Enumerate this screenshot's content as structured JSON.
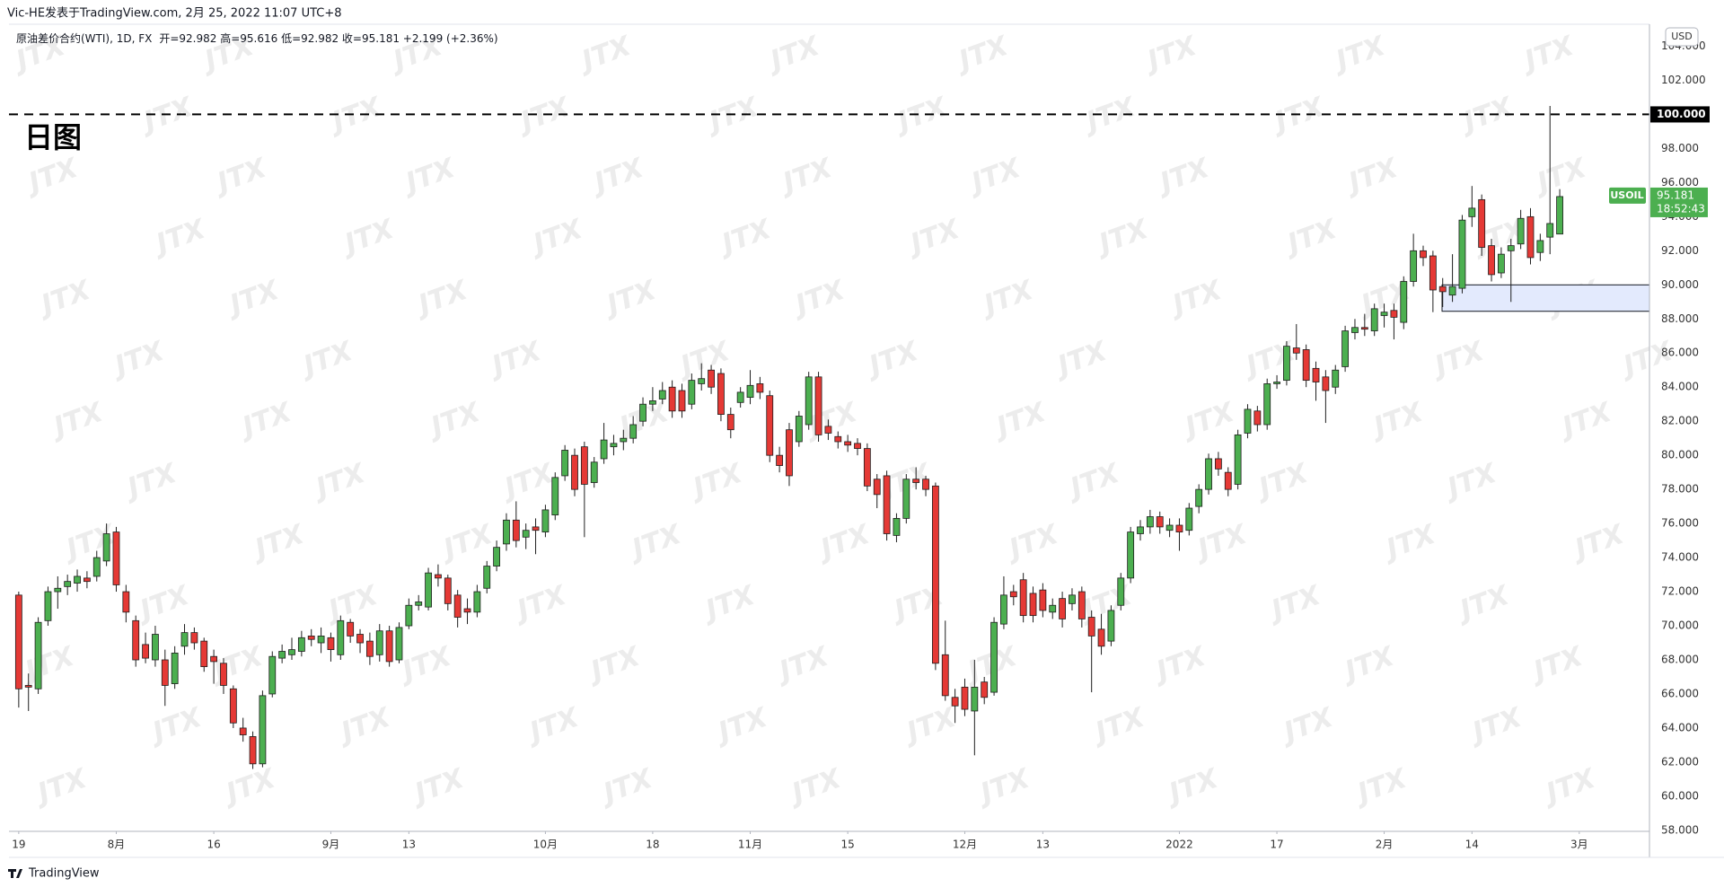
{
  "header": "Vic-HE发表于TradingView.com, 2月 25, 2022 11:07 UTC+8",
  "footer": "TradingView",
  "watermark": "JTX",
  "chart_data": {
    "type": "candlestick",
    "annotation": "日图",
    "currency": "USD",
    "ohlc_text": "开=92.982 高=95.616 低=92.982 收=95.181 +2.199 (+2.36%)",
    "up_color": "#4caf50",
    "down_color": "#e53935",
    "border_color": "#1e1e1e",
    "grid": false,
    "series": [
      {
        "name": "原油差价合约(WTI), 1D, FX",
        "open": [
          71.8,
          66.5,
          66.3,
          70.3,
          72.0,
          72.3,
          72.5,
          72.8,
          72.9,
          73.8,
          75.5,
          72.0,
          70.3,
          68.9,
          68.0,
          68.0,
          66.6,
          68.8,
          69.6,
          69.1,
          68.2,
          67.8,
          66.3,
          64.0,
          63.5,
          61.9,
          66.0,
          68.1,
          68.3,
          68.5,
          69.4,
          69.0,
          69.3,
          68.3,
          70.2,
          69.5,
          69.1,
          68.3,
          69.7,
          68.0,
          70.0,
          71.2,
          71.1,
          73.0,
          72.8,
          71.8,
          71.0,
          70.8,
          72.2,
          73.5,
          74.8,
          76.2,
          75.2,
          75.8,
          75.5,
          76.5,
          78.8,
          80.0,
          80.5,
          78.4,
          79.8,
          80.5,
          80.8,
          81.0,
          82.0,
          83.0,
          83.3,
          84.0,
          83.8,
          83.0,
          84.2,
          85.0,
          84.8,
          82.4,
          83.1,
          83.4,
          84.2,
          83.5,
          80.0,
          81.5,
          80.8,
          81.8,
          84.6,
          81.7,
          81.1,
          80.8,
          80.7,
          80.4,
          78.6,
          78.8,
          75.3,
          76.3,
          78.6,
          78.6,
          78.2,
          68.3,
          65.8,
          66.4,
          65.0,
          66.7,
          66.1,
          70.1,
          72.0,
          72.7,
          71.9,
          72.1,
          70.8,
          71.6,
          71.3,
          72.0,
          70.5,
          69.8,
          69.1,
          71.2,
          72.8,
          75.4,
          75.8,
          76.4,
          75.6,
          75.9,
          75.6,
          77.0,
          78.0,
          79.8,
          79.0,
          78.3,
          81.3,
          82.6,
          81.8,
          84.2,
          84.4,
          86.3,
          86.2,
          85.1,
          84.6,
          84.0,
          85.2,
          87.2,
          87.5,
          87.3,
          88.2,
          88.5,
          87.8,
          90.2,
          92.0,
          91.7,
          89.9,
          89.4,
          89.8,
          94.0,
          95.0,
          92.3,
          90.7,
          92.0,
          92.4,
          94.0,
          91.9,
          92.8,
          92.982
        ],
        "high": [
          72.0,
          67.2,
          70.5,
          72.3,
          72.9,
          73.0,
          73.3,
          73.2,
          74.4,
          76.0,
          75.8,
          72.4,
          70.6,
          69.6,
          70.0,
          68.6,
          68.8,
          70.1,
          69.9,
          69.3,
          68.6,
          68.1,
          66.5,
          64.6,
          63.8,
          66.2,
          68.5,
          68.9,
          69.3,
          69.7,
          69.8,
          69.9,
          69.6,
          70.6,
          70.4,
          69.8,
          69.6,
          70.1,
          70.0,
          70.2,
          71.6,
          71.8,
          73.4,
          73.6,
          73.0,
          72.1,
          71.6,
          72.4,
          73.8,
          75.0,
          76.6,
          77.3,
          76.0,
          76.3,
          77.1,
          79.0,
          80.6,
          80.4,
          80.8,
          79.9,
          81.9,
          81.2,
          81.5,
          82.3,
          83.4,
          84.0,
          84.3,
          84.4,
          84.2,
          84.8,
          85.4,
          85.3,
          85.1,
          82.8,
          84.0,
          85.0,
          84.6,
          83.8,
          80.5,
          81.9,
          82.6,
          84.9,
          84.9,
          82.1,
          81.4,
          81.2,
          81.0,
          80.7,
          78.9,
          79.1,
          76.6,
          78.9,
          79.3,
          78.8,
          78.4,
          70.3,
          66.3,
          66.9,
          68.0,
          67.0,
          70.5,
          72.9,
          72.4,
          73.1,
          72.3,
          72.5,
          71.6,
          72.0,
          72.2,
          72.3,
          70.9,
          70.7,
          71.2,
          73.1,
          75.8,
          76.2,
          76.8,
          76.7,
          76.3,
          76.3,
          77.2,
          78.3,
          80.1,
          80.2,
          79.3,
          81.5,
          83.0,
          82.9,
          84.5,
          84.7,
          86.7,
          87.7,
          86.5,
          85.5,
          85.0,
          85.3,
          87.6,
          88.0,
          88.3,
          88.9,
          88.9,
          88.9,
          90.5,
          93.0,
          92.3,
          92.0,
          90.4,
          91.8,
          94.1,
          95.8,
          95.3,
          92.7,
          92.2,
          92.7,
          94.4,
          94.5,
          93.0,
          100.5,
          95.616
        ],
        "low": [
          65.2,
          65.0,
          66.0,
          70.0,
          71.0,
          71.8,
          72.0,
          72.2,
          72.6,
          73.5,
          72.0,
          70.2,
          67.6,
          67.8,
          67.6,
          65.3,
          66.3,
          68.3,
          68.6,
          67.3,
          66.6,
          66.0,
          64.0,
          63.2,
          61.6,
          61.7,
          65.8,
          67.8,
          68.0,
          68.2,
          68.8,
          68.4,
          67.9,
          68.0,
          69.0,
          68.4,
          67.7,
          67.9,
          67.6,
          67.8,
          69.8,
          70.9,
          70.9,
          72.3,
          70.9,
          69.9,
          70.1,
          70.5,
          71.9,
          73.2,
          74.4,
          74.6,
          74.5,
          74.2,
          75.2,
          76.2,
          78.5,
          77.6,
          75.2,
          78.1,
          79.5,
          80.0,
          80.3,
          80.7,
          81.7,
          82.6,
          83.0,
          82.2,
          82.2,
          82.7,
          83.8,
          83.6,
          82.0,
          81.0,
          82.8,
          83.0,
          83.3,
          79.6,
          79.0,
          78.2,
          80.5,
          81.5,
          80.8,
          80.9,
          80.4,
          80.2,
          80.0,
          77.9,
          76.9,
          75.0,
          74.9,
          76.0,
          78.0,
          77.6,
          67.4,
          65.6,
          64.3,
          64.7,
          62.4,
          65.4,
          65.9,
          69.8,
          71.2,
          70.2,
          70.2,
          70.5,
          70.4,
          69.9,
          70.9,
          69.9,
          66.1,
          68.3,
          68.8,
          70.9,
          72.5,
          75.0,
          75.4,
          75.4,
          75.2,
          74.4,
          75.3,
          76.6,
          77.7,
          78.8,
          77.6,
          78.0,
          81.0,
          81.4,
          81.5,
          83.9,
          84.1,
          85.6,
          84.0,
          83.2,
          81.9,
          83.6,
          84.9,
          86.8,
          87.0,
          87.0,
          87.5,
          86.8,
          87.4,
          89.9,
          91.1,
          88.4,
          88.7,
          89.0,
          89.5,
          93.4,
          91.7,
          90.2,
          90.4,
          89.0,
          92.1,
          91.2,
          91.4,
          91.8,
          92.982
        ],
        "close": [
          66.3,
          66.4,
          70.2,
          72.0,
          72.2,
          72.6,
          72.9,
          72.6,
          74.0,
          75.4,
          72.4,
          70.8,
          68.0,
          68.1,
          69.5,
          66.5,
          68.4,
          69.6,
          69.0,
          67.6,
          67.9,
          66.5,
          64.3,
          63.6,
          61.9,
          65.9,
          68.2,
          68.5,
          68.6,
          69.3,
          69.2,
          69.4,
          68.6,
          70.3,
          69.4,
          69.0,
          68.2,
          69.7,
          67.9,
          69.9,
          71.2,
          71.4,
          73.1,
          72.8,
          71.3,
          70.5,
          70.8,
          72.0,
          73.5,
          74.6,
          76.2,
          75.0,
          75.6,
          75.6,
          76.8,
          78.7,
          80.3,
          78.0,
          78.3,
          79.6,
          80.9,
          80.7,
          81.0,
          81.8,
          83.0,
          83.2,
          83.8,
          82.6,
          82.6,
          84.4,
          84.5,
          84.0,
          82.4,
          81.5,
          83.7,
          84.1,
          83.7,
          80.0,
          79.4,
          78.8,
          82.3,
          84.6,
          81.2,
          81.3,
          80.8,
          80.6,
          80.4,
          78.2,
          77.7,
          75.4,
          76.3,
          78.6,
          78.4,
          78.0,
          67.8,
          65.9,
          65.3,
          65.1,
          66.4,
          65.8,
          70.2,
          71.8,
          71.7,
          70.6,
          70.6,
          70.9,
          71.2,
          70.4,
          71.8,
          70.4,
          69.4,
          68.8,
          70.9,
          72.8,
          75.5,
          75.8,
          76.4,
          75.8,
          75.9,
          75.5,
          76.9,
          78.0,
          79.8,
          79.2,
          78.0,
          81.2,
          82.7,
          81.8,
          84.2,
          84.3,
          86.4,
          86.0,
          84.4,
          84.3,
          83.8,
          85.0,
          87.3,
          87.5,
          87.4,
          88.6,
          88.4,
          88.1,
          90.2,
          92.0,
          91.6,
          89.7,
          89.6,
          89.9,
          93.8,
          94.5,
          92.2,
          90.6,
          91.8,
          92.3,
          93.9,
          91.6,
          92.6,
          93.6,
          95.181
        ]
      }
    ],
    "xlim": [
      -1,
      167.2
    ],
    "xticks": [
      {
        "value": 0,
        "label": "19"
      },
      {
        "value": 10,
        "label": "8月"
      },
      {
        "value": 20,
        "label": "16"
      },
      {
        "value": 32,
        "label": "9月"
      },
      {
        "value": 40,
        "label": "13"
      },
      {
        "value": 54,
        "label": "10月"
      },
      {
        "value": 65,
        "label": "18"
      },
      {
        "value": 75,
        "label": "11月"
      },
      {
        "value": 85,
        "label": "15"
      },
      {
        "value": 97,
        "label": "12月"
      },
      {
        "value": 105,
        "label": "13"
      },
      {
        "value": 119,
        "label": "2022"
      },
      {
        "value": 129,
        "label": "17"
      },
      {
        "value": 140,
        "label": "2月"
      },
      {
        "value": 149,
        "label": "14"
      },
      {
        "value": 160,
        "label": "3月"
      }
    ],
    "ylim": [
      57.94,
      105.29
    ],
    "yticks": [
      {
        "value": 58,
        "label": "58.000"
      },
      {
        "value": 60,
        "label": "60.000"
      },
      {
        "value": 62,
        "label": "62.000"
      },
      {
        "value": 64,
        "label": "64.000"
      },
      {
        "value": 66,
        "label": "66.000"
      },
      {
        "value": 68,
        "label": "68.000"
      },
      {
        "value": 70,
        "label": "70.000"
      },
      {
        "value": 72,
        "label": "72.000"
      },
      {
        "value": 74,
        "label": "74.000"
      },
      {
        "value": 76,
        "label": "76.000"
      },
      {
        "value": 78,
        "label": "78.000"
      },
      {
        "value": 80,
        "label": "80.000"
      },
      {
        "value": 82,
        "label": "82.000"
      },
      {
        "value": 84,
        "label": "84.000"
      },
      {
        "value": 86,
        "label": "86.000"
      },
      {
        "value": 88,
        "label": "88.000"
      },
      {
        "value": 90,
        "label": "90.000"
      },
      {
        "value": 92,
        "label": "92.000"
      },
      {
        "value": 94,
        "label": "94.000"
      },
      {
        "value": 96,
        "label": "96.000"
      },
      {
        "value": 98,
        "label": "98.000"
      },
      {
        "value": 102,
        "label": "102.000"
      },
      {
        "value": 104,
        "label": "104.000"
      }
    ],
    "level": {
      "value": 100,
      "label": "100.000"
    },
    "zone": {
      "high": 90.0,
      "low": 88.45
    },
    "last_price": {
      "symbol": "USOIL",
      "value": 95.181,
      "countdown": "18:52:43"
    }
  }
}
